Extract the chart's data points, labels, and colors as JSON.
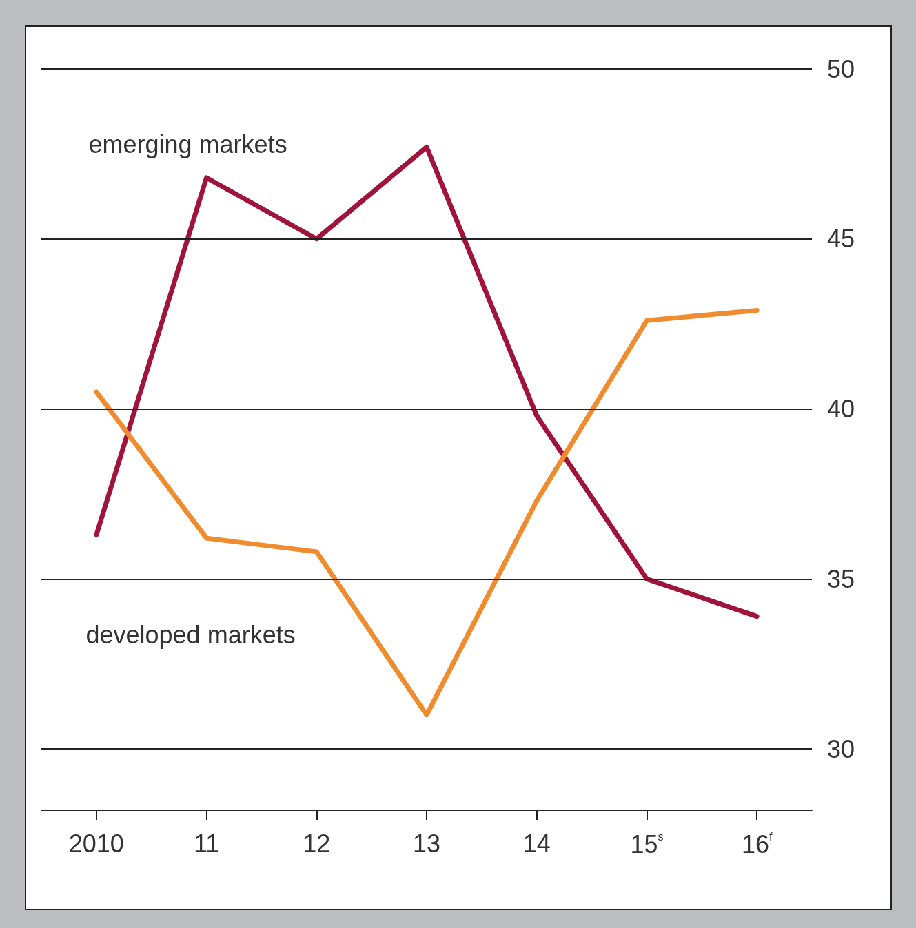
{
  "chart_data": {
    "type": "line",
    "categories": [
      "2010",
      "11",
      "12",
      "13",
      "14",
      "15$^{s}$",
      "16$^{f}$"
    ],
    "series": [
      {
        "name": "emerging markets",
        "color": "#a0143c",
        "values": [
          36.3,
          46.8,
          45.0,
          47.7,
          39.8,
          35.0,
          33.9
        ]
      },
      {
        "name": "developed markets",
        "color": "#f08c2d",
        "values": [
          40.5,
          36.2,
          35.8,
          31.0,
          37.3,
          42.6,
          42.9
        ]
      }
    ],
    "ylim": [
      28.2,
      50
    ],
    "yticks": [
      30,
      35,
      40,
      45,
      50
    ],
    "grid": "y",
    "marker": "none",
    "line_style": "solid"
  }
}
